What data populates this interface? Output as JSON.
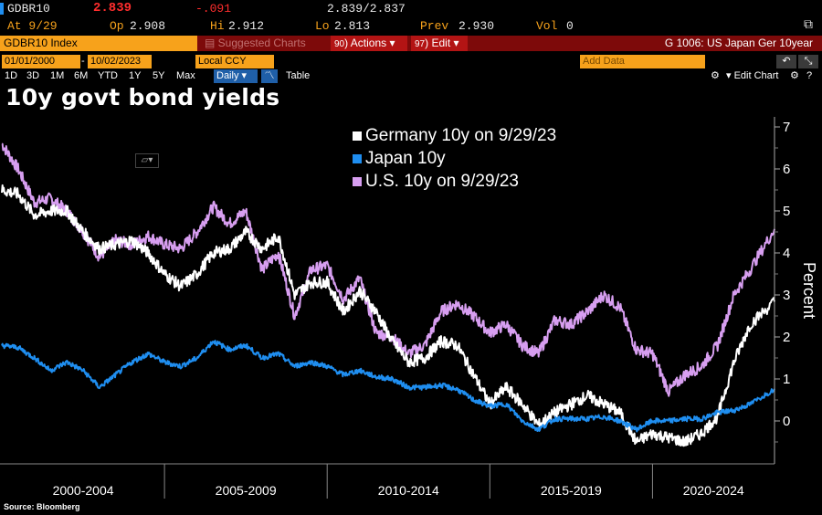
{
  "ticker_bar": {
    "ticker": "GDBR10",
    "last": "2.839",
    "change": "-.091",
    "bid_ask": "2.839/2.837",
    "at_label": "At 9/29",
    "open_label": "Op",
    "open": "2.908",
    "high_label": "Hi",
    "high": "2.912",
    "low_label": "Lo",
    "low": "2.813",
    "prev_label": "Prev",
    "prev": "2.930",
    "vol_label": "Vol",
    "vol": "0"
  },
  "menu_bar": {
    "security": "GDBR10 Index",
    "suggested": "Suggested Charts",
    "actions": "Actions",
    "actions_num": "90",
    "edit": "Edit",
    "edit_num": "97",
    "chart_name": "G 1006: US Japan Ger 10year"
  },
  "range_bar": {
    "start_date": "01/01/2000",
    "end_date": "10/02/2023",
    "currency": "Local CCY",
    "add_data_placeholder": "Add Data"
  },
  "period_bar": {
    "periods": [
      "1D",
      "3D",
      "1M",
      "6M",
      "YTD",
      "1Y",
      "5Y",
      "Max"
    ],
    "frequency": "Daily",
    "table_label": "Table",
    "edit_chart_label": "Edit Chart"
  },
  "colors": {
    "germany": "#ffffff",
    "japan": "#1f8ef0",
    "us": "#d79ef0",
    "amber": "#f7a21b",
    "menu_red": "#7d0a0a"
  },
  "chart_data": {
    "type": "line",
    "title": "10y govt bond yields",
    "ylabel": "Percent",
    "ylim": [
      -1,
      7
    ],
    "yticks": [
      0,
      1,
      2,
      3,
      4,
      5,
      6,
      7
    ],
    "xlim": [
      2000.0,
      2023.75
    ],
    "x_period_labels": [
      "2000-2004",
      "2005-2009",
      "2010-2014",
      "2015-2019",
      "2020-2024"
    ],
    "x_dividers": [
      2005,
      2010,
      2015,
      2020
    ],
    "legend_position": "top-center",
    "grid": false,
    "source": "Source: Bloomberg",
    "x": [
      2000.0,
      2000.5,
      2001.0,
      2001.5,
      2002.0,
      2002.5,
      2003.0,
      2003.5,
      2004.0,
      2004.5,
      2005.0,
      2005.5,
      2006.0,
      2006.5,
      2007.0,
      2007.5,
      2008.0,
      2008.5,
      2009.0,
      2009.5,
      2010.0,
      2010.5,
      2011.0,
      2011.5,
      2012.0,
      2012.5,
      2013.0,
      2013.5,
      2014.0,
      2014.5,
      2015.0,
      2015.5,
      2016.0,
      2016.5,
      2017.0,
      2017.5,
      2018.0,
      2018.5,
      2019.0,
      2019.5,
      2020.0,
      2020.5,
      2021.0,
      2021.5,
      2022.0,
      2022.5,
      2023.0,
      2023.75
    ],
    "series": [
      {
        "name": "Germany 10y on 9/29/23",
        "color": "#ffffff",
        "values": [
          5.5,
          5.4,
          4.9,
          5.0,
          5.0,
          4.5,
          4.1,
          4.2,
          4.3,
          4.0,
          3.5,
          3.2,
          3.5,
          4.0,
          4.1,
          4.5,
          4.1,
          4.4,
          3.0,
          3.3,
          3.3,
          2.6,
          3.1,
          2.6,
          1.9,
          1.4,
          1.5,
          1.9,
          1.8,
          1.1,
          0.4,
          0.8,
          0.4,
          -0.1,
          0.2,
          0.4,
          0.6,
          0.4,
          0.2,
          -0.5,
          -0.3,
          -0.4,
          -0.5,
          -0.3,
          0.1,
          1.4,
          2.3,
          2.84
        ]
      },
      {
        "name": "Japan 10y",
        "color": "#1f8ef0",
        "values": [
          1.8,
          1.75,
          1.5,
          1.2,
          1.4,
          1.2,
          0.8,
          1.1,
          1.4,
          1.6,
          1.4,
          1.3,
          1.5,
          1.9,
          1.7,
          1.8,
          1.5,
          1.6,
          1.3,
          1.4,
          1.3,
          1.1,
          1.2,
          1.05,
          1.0,
          0.8,
          0.8,
          0.85,
          0.75,
          0.5,
          0.35,
          0.4,
          0.0,
          -0.2,
          0.05,
          0.05,
          0.05,
          0.1,
          0.0,
          -0.2,
          0.0,
          0.0,
          0.05,
          0.05,
          0.2,
          0.25,
          0.4,
          0.76
        ]
      },
      {
        "name": "U.S. 10y on 9/29/23",
        "color": "#d79ef0",
        "values": [
          6.6,
          6.0,
          5.2,
          5.3,
          5.0,
          4.5,
          3.9,
          4.3,
          4.2,
          4.4,
          4.2,
          4.1,
          4.5,
          5.1,
          4.7,
          5.0,
          3.6,
          4.0,
          2.5,
          3.6,
          3.7,
          2.9,
          3.4,
          2.1,
          2.0,
          1.6,
          1.8,
          2.6,
          2.8,
          2.5,
          2.1,
          2.3,
          1.8,
          1.6,
          2.4,
          2.3,
          2.6,
          3.0,
          2.7,
          1.7,
          1.6,
          0.7,
          1.1,
          1.3,
          1.8,
          3.0,
          3.6,
          4.57
        ]
      }
    ]
  }
}
